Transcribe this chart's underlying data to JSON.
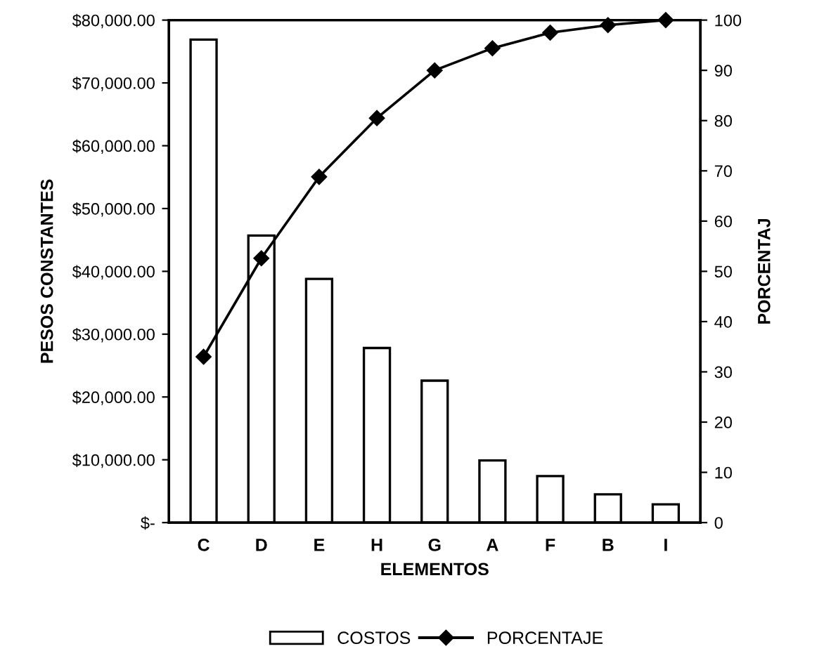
{
  "chart_data": {
    "type": "bar",
    "xlabel": "ELEMENTOS",
    "ylabel": "PESOS CONSTANTES",
    "y2label": "PORCENTAJ",
    "categories": [
      "C",
      "D",
      "E",
      "H",
      "G",
      "A",
      "F",
      "B",
      "I"
    ],
    "series": [
      {
        "name": "COSTOS",
        "color": "#ffffff",
        "values": [
          76900,
          45700,
          38800,
          27800,
          22600,
          9900,
          7400,
          4500,
          2900
        ]
      },
      {
        "name": "PORCENTAJE",
        "type": "line",
        "axis": "y2",
        "color": "#000000",
        "marker": "diamond",
        "values": [
          33,
          52.6,
          68.8,
          80.5,
          90,
          94.4,
          97.5,
          99,
          100
        ]
      }
    ],
    "ylim": [
      0,
      80000
    ],
    "yticks": [
      {
        "value": 0,
        "label": "$-"
      },
      {
        "value": 10000,
        "label": "$10,000.00"
      },
      {
        "value": 20000,
        "label": "$20,000.00"
      },
      {
        "value": 30000,
        "label": "$30,000.00"
      },
      {
        "value": 40000,
        "label": "$40,000.00"
      },
      {
        "value": 50000,
        "label": "$50,000.00"
      },
      {
        "value": 60000,
        "label": "$60,000.00"
      },
      {
        "value": 70000,
        "label": "$70,000.00"
      },
      {
        "value": 80000,
        "label": "$80,000.00"
      }
    ],
    "y2lim": [
      0,
      100
    ],
    "y2ticks": [
      0,
      10,
      20,
      30,
      40,
      50,
      60,
      70,
      80,
      90,
      100
    ],
    "grid": false,
    "legend": "bottom"
  }
}
